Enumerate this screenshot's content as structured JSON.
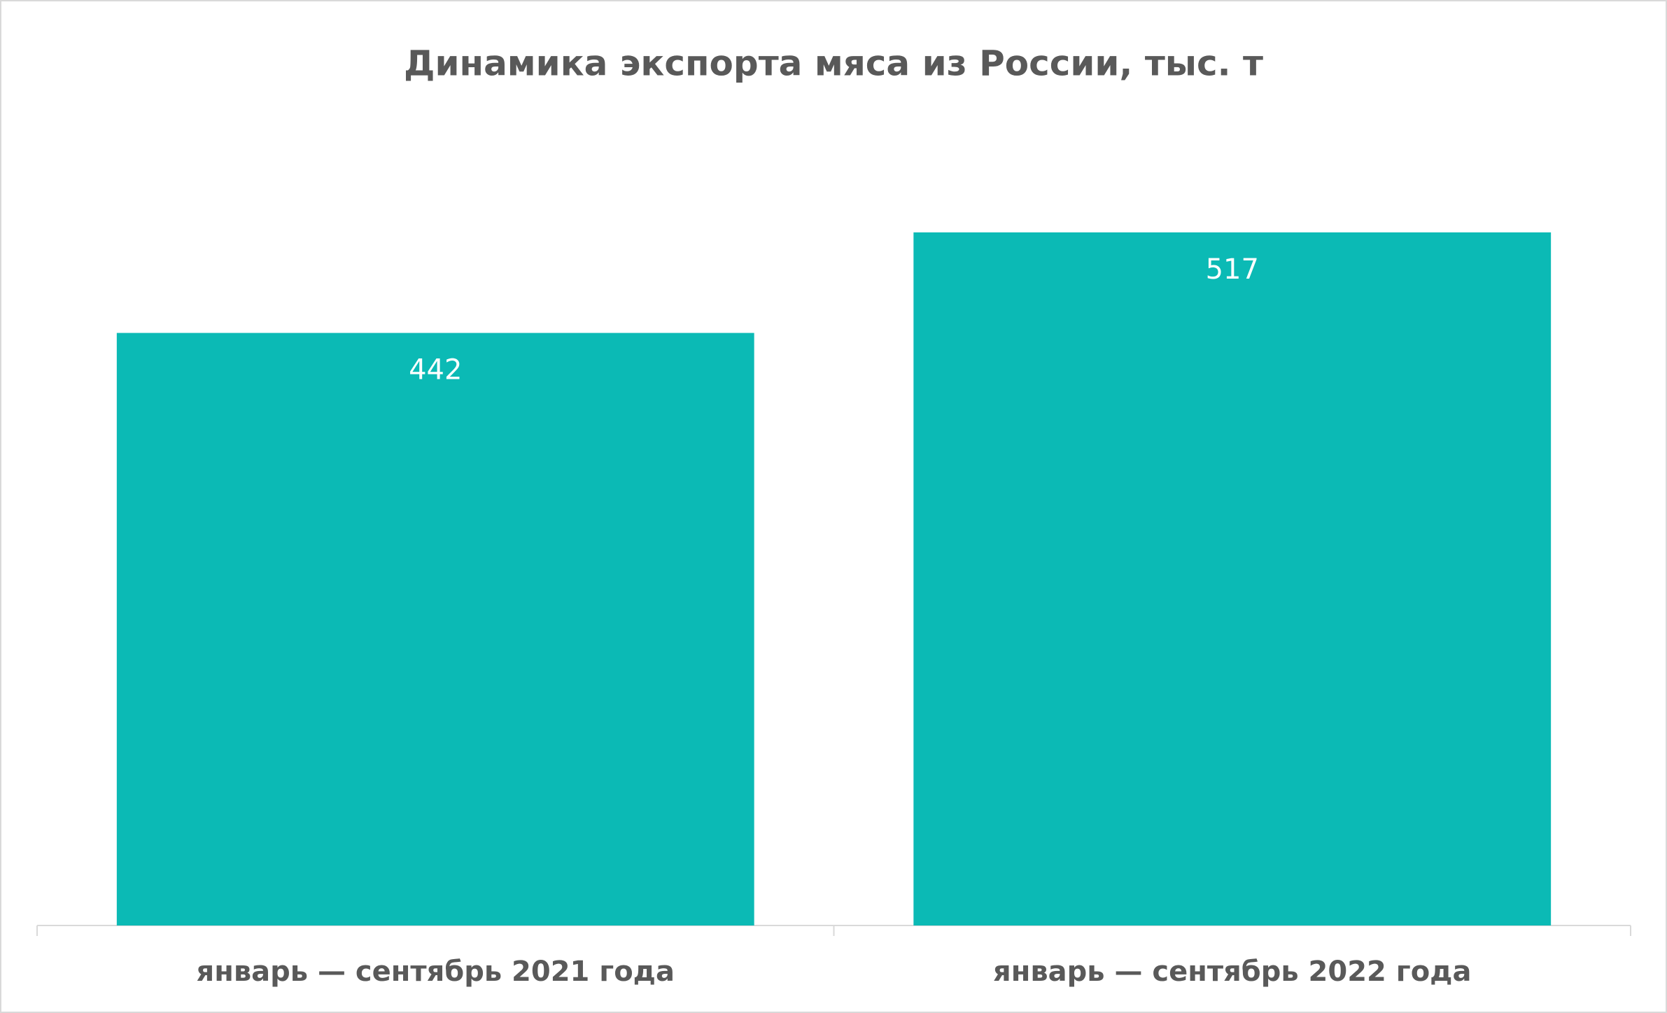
{
  "chart_data": {
    "type": "bar",
    "title": "Динамика экспорта мяса из России, тыс. т",
    "categories": [
      "январь — сентябрь 2021 года",
      "январь — сентябрь 2022 года"
    ],
    "values": [
      442,
      517
    ],
    "color": "#0bbab5",
    "ylim": [
      0,
      600
    ]
  }
}
